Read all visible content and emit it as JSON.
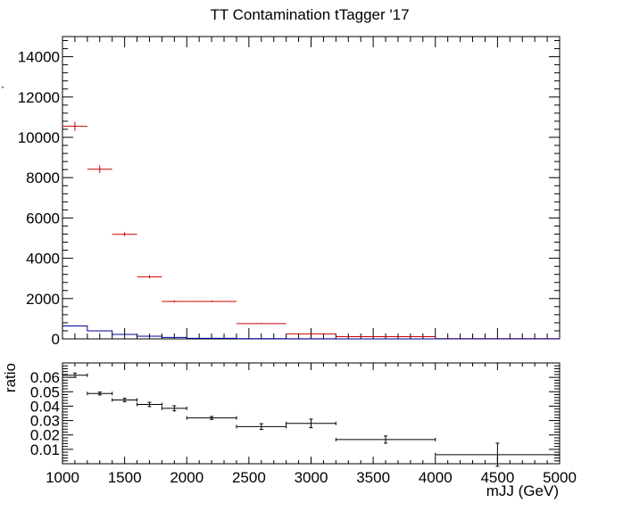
{
  "chart_data": [
    {
      "type": "line",
      "title": "TT Contamination tTagger '17",
      "xlabel": "",
      "ylabel": "",
      "xlim": [
        1000,
        5000
      ],
      "ylim": [
        0,
        15000
      ],
      "x_ticks": [
        1000,
        1500,
        2000,
        2500,
        3000,
        3500,
        4000,
        4500,
        5000
      ],
      "y_ticks": [
        0,
        2000,
        4000,
        6000,
        8000,
        10000,
        12000,
        14000
      ],
      "bin_edges": [
        1000,
        1200,
        1400,
        1600,
        1800,
        2000,
        2400,
        2800,
        3200,
        4000,
        5000
      ],
      "series": [
        {
          "style": "error-points",
          "color": "#cc0000",
          "x": [
            1100,
            1300,
            1500,
            1700,
            1900,
            2200,
            2600,
            3000,
            3600,
            4500
          ],
          "xerr": [
            100,
            100,
            100,
            100,
            100,
            200,
            200,
            200,
            400,
            500
          ],
          "values": [
            10550,
            8420,
            5190,
            3080,
            1860,
            1860,
            760,
            250,
            110,
            10
          ],
          "yerr": [
            220,
            190,
            100,
            80,
            50,
            40,
            30,
            20,
            10,
            5
          ]
        },
        {
          "style": "step",
          "color": "#000099",
          "x": [
            1100,
            1300,
            1500,
            1700,
            1900,
            2200,
            2600,
            3000,
            3600,
            4500
          ],
          "values": [
            640,
            400,
            220,
            130,
            70,
            30,
            10,
            5,
            2,
            0
          ]
        }
      ]
    },
    {
      "type": "line",
      "title": "",
      "xlabel": "mJJ (GeV)",
      "ylabel": "ratio",
      "xlim": [
        1000,
        5000
      ],
      "ylim": [
        0,
        0.07
      ],
      "x_ticks": [
        1000,
        1500,
        2000,
        2500,
        3000,
        3500,
        4000,
        4500,
        5000
      ],
      "y_ticks": [
        0.01,
        0.02,
        0.03,
        0.04,
        0.05,
        0.06
      ],
      "series": [
        {
          "style": "error-points",
          "color": "#000000",
          "x": [
            1100,
            1300,
            1500,
            1700,
            1900,
            2200,
            2600,
            3000,
            3600,
            4500
          ],
          "xerr": [
            100,
            100,
            100,
            100,
            100,
            200,
            200,
            200,
            400,
            500
          ],
          "values": [
            0.0615,
            0.0488,
            0.0443,
            0.0412,
            0.0385,
            0.0318,
            0.0258,
            0.028,
            0.0168,
            0.0063
          ],
          "yerr": [
            0.0015,
            0.001,
            0.0012,
            0.0015,
            0.0018,
            0.001,
            0.002,
            0.003,
            0.0025,
            0.008
          ]
        }
      ]
    }
  ]
}
